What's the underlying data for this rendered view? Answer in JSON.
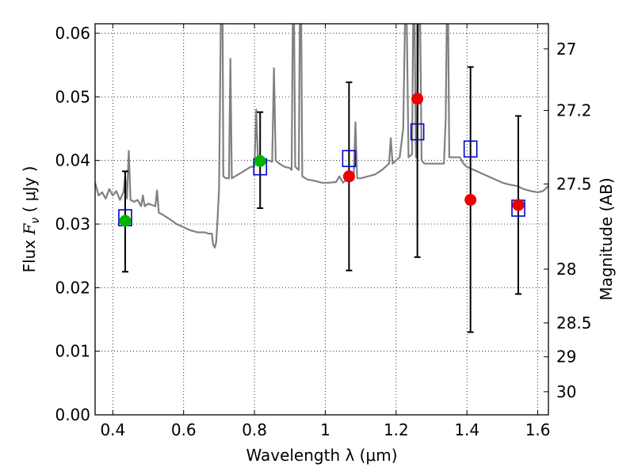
{
  "chart_data": {
    "type": "scatter",
    "xlabel": "Wavelength  λ (μm)",
    "ylabel": "Flux  Fν  ( μJy )",
    "ylabel_parts": {
      "prefix": "Flux  ",
      "symbol": "F",
      "subscript": "ν",
      "suffix": "  ( μJy )"
    },
    "ylabel_right": "Magnitude (AB)",
    "xlim": [
      0.35,
      1.63
    ],
    "ylim": [
      0.0,
      0.0615
    ],
    "grid": true,
    "x_ticks": [
      0.4,
      0.6,
      0.8,
      1.0,
      1.2,
      1.4,
      1.6
    ],
    "x_tick_labels": [
      "0.4",
      "0.6",
      "0.8",
      "1",
      "1.2",
      "1.4",
      "1.6"
    ],
    "y_ticks": [
      0.0,
      0.01,
      0.02,
      0.03,
      0.04,
      0.05,
      0.06
    ],
    "y_tick_labels": [
      "0.00",
      "0.01",
      "0.02",
      "0.03",
      "0.04",
      "0.05",
      "0.06"
    ],
    "mag_ticks": [
      27,
      27.2,
      27.5,
      28,
      28.5,
      29,
      30
    ],
    "mag_tick_labels": [
      "27",
      "27.2",
      "27.5",
      "28",
      "28.5",
      "29",
      "30"
    ],
    "colors": {
      "spectrum": "#808080",
      "green": "#00b400",
      "red": "#ee0000",
      "model": "#0000cc",
      "error": "#000000"
    },
    "observed_green": [
      {
        "x": 0.435,
        "y": 0.0305
      },
      {
        "x": 0.816,
        "y": 0.0399
      }
    ],
    "observed_red": [
      {
        "x": 1.067,
        "y": 0.0375
      },
      {
        "x": 1.26,
        "y": 0.0497
      },
      {
        "x": 1.41,
        "y": 0.0338
      },
      {
        "x": 1.545,
        "y": 0.033
      }
    ],
    "model_squares": [
      {
        "x": 0.435,
        "y": 0.031
      },
      {
        "x": 0.816,
        "y": 0.039
      },
      {
        "x": 1.067,
        "y": 0.0403
      },
      {
        "x": 1.26,
        "y": 0.0445
      },
      {
        "x": 1.41,
        "y": 0.0418
      },
      {
        "x": 1.545,
        "y": 0.0325
      }
    ],
    "error_bars": [
      {
        "x": 0.435,
        "low": 0.0225,
        "high": 0.0383
      },
      {
        "x": 0.816,
        "low": 0.0325,
        "high": 0.0476
      },
      {
        "x": 1.067,
        "low": 0.0227,
        "high": 0.0523
      },
      {
        "x": 1.26,
        "low": 0.0248,
        "high": 0.0615
      },
      {
        "x": 1.41,
        "low": 0.013,
        "high": 0.0547
      },
      {
        "x": 1.545,
        "low": 0.019,
        "high": 0.047
      }
    ],
    "spectrum": [
      [
        0.35,
        0.0365
      ],
      [
        0.36,
        0.0345
      ],
      [
        0.37,
        0.035
      ],
      [
        0.38,
        0.034
      ],
      [
        0.39,
        0.0355
      ],
      [
        0.4,
        0.0345
      ],
      [
        0.41,
        0.0352
      ],
      [
        0.42,
        0.0338
      ],
      [
        0.43,
        0.035
      ],
      [
        0.435,
        0.0375
      ],
      [
        0.44,
        0.034
      ],
      [
        0.445,
        0.0415
      ],
      [
        0.45,
        0.0338
      ],
      [
        0.46,
        0.0335
      ],
      [
        0.47,
        0.0338
      ],
      [
        0.48,
        0.0328
      ],
      [
        0.485,
        0.0345
      ],
      [
        0.49,
        0.0328
      ],
      [
        0.5,
        0.0332
      ],
      [
        0.51,
        0.033
      ],
      [
        0.52,
        0.0328
      ],
      [
        0.525,
        0.0353
      ],
      [
        0.53,
        0.0318
      ],
      [
        0.54,
        0.0315
      ],
      [
        0.56,
        0.0308
      ],
      [
        0.58,
        0.03
      ],
      [
        0.6,
        0.0295
      ],
      [
        0.62,
        0.029
      ],
      [
        0.64,
        0.0287
      ],
      [
        0.66,
        0.0287
      ],
      [
        0.67,
        0.0285
      ],
      [
        0.68,
        0.0285
      ],
      [
        0.683,
        0.0268
      ],
      [
        0.688,
        0.0263
      ],
      [
        0.692,
        0.0272
      ],
      [
        0.695,
        0.03
      ],
      [
        0.7,
        0.0355
      ],
      [
        0.705,
        0.0615
      ],
      [
        0.71,
        0.0615
      ],
      [
        0.712,
        0.0375
      ],
      [
        0.72,
        0.0372
      ],
      [
        0.728,
        0.0372
      ],
      [
        0.732,
        0.056
      ],
      [
        0.736,
        0.0372
      ],
      [
        0.745,
        0.0375
      ],
      [
        0.76,
        0.038
      ],
      [
        0.775,
        0.0385
      ],
      [
        0.79,
        0.039
      ],
      [
        0.8,
        0.039
      ],
      [
        0.805,
        0.048
      ],
      [
        0.81,
        0.0395
      ],
      [
        0.82,
        0.04
      ],
      [
        0.83,
        0.04
      ],
      [
        0.84,
        0.04
      ],
      [
        0.85,
        0.0398
      ],
      [
        0.855,
        0.0545
      ],
      [
        0.86,
        0.04
      ],
      [
        0.87,
        0.0395
      ],
      [
        0.885,
        0.039
      ],
      [
        0.9,
        0.0388
      ],
      [
        0.905,
        0.0385
      ],
      [
        0.908,
        0.0615
      ],
      [
        0.912,
        0.0615
      ],
      [
        0.915,
        0.039
      ],
      [
        0.925,
        0.0385
      ],
      [
        0.928,
        0.0615
      ],
      [
        0.932,
        0.0615
      ],
      [
        0.935,
        0.0375
      ],
      [
        0.95,
        0.037
      ],
      [
        0.97,
        0.0368
      ],
      [
        0.99,
        0.0365
      ],
      [
        1.01,
        0.0365
      ],
      [
        1.03,
        0.0366
      ],
      [
        1.04,
        0.0375
      ],
      [
        1.05,
        0.0365
      ],
      [
        1.07,
        0.0375
      ],
      [
        1.08,
        0.037
      ],
      [
        1.085,
        0.046
      ],
      [
        1.09,
        0.0372
      ],
      [
        1.1,
        0.0372
      ],
      [
        1.12,
        0.0375
      ],
      [
        1.14,
        0.0378
      ],
      [
        1.16,
        0.0385
      ],
      [
        1.18,
        0.0395
      ],
      [
        1.185,
        0.0435
      ],
      [
        1.19,
        0.0395
      ],
      [
        1.2,
        0.04
      ],
      [
        1.21,
        0.0405
      ],
      [
        1.22,
        0.045
      ],
      [
        1.225,
        0.0615
      ],
      [
        1.23,
        0.0615
      ],
      [
        1.235,
        0.0405
      ],
      [
        1.245,
        0.041
      ],
      [
        1.248,
        0.0615
      ],
      [
        1.252,
        0.0615
      ],
      [
        1.256,
        0.0405
      ],
      [
        1.26,
        0.0405
      ],
      [
        1.263,
        0.0615
      ],
      [
        1.268,
        0.0615
      ],
      [
        1.272,
        0.04
      ],
      [
        1.28,
        0.0395
      ],
      [
        1.3,
        0.0395
      ],
      [
        1.32,
        0.0395
      ],
      [
        1.335,
        0.0395
      ],
      [
        1.34,
        0.0465
      ],
      [
        1.343,
        0.0615
      ],
      [
        1.347,
        0.0615
      ],
      [
        1.35,
        0.0405
      ],
      [
        1.36,
        0.0405
      ],
      [
        1.38,
        0.0405
      ],
      [
        1.39,
        0.0395
      ],
      [
        1.4,
        0.039
      ],
      [
        1.42,
        0.0385
      ],
      [
        1.44,
        0.038
      ],
      [
        1.46,
        0.0375
      ],
      [
        1.48,
        0.037
      ],
      [
        1.5,
        0.0365
      ],
      [
        1.52,
        0.0362
      ],
      [
        1.54,
        0.036
      ],
      [
        1.56,
        0.0355
      ],
      [
        1.58,
        0.0352
      ],
      [
        1.6,
        0.035
      ],
      [
        1.615,
        0.0352
      ],
      [
        1.63,
        0.036
      ]
    ]
  }
}
